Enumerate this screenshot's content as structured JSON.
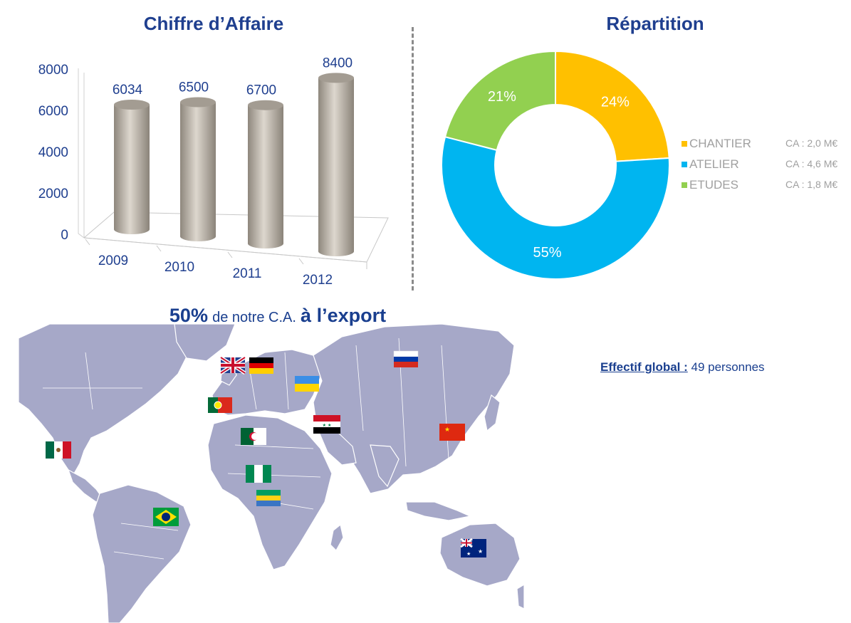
{
  "chart_data": [
    {
      "type": "bar",
      "title": "Chiffre d’Affaire",
      "categories": [
        "2009",
        "2010",
        "2011",
        "2012"
      ],
      "values": [
        6034,
        6500,
        6700,
        8400
      ],
      "yticks": [
        "0",
        "2000",
        "4000",
        "6000",
        "8000"
      ],
      "ylim": [
        0,
        8000
      ],
      "grid": false,
      "style": "3d-cylinder",
      "colors": {
        "bar": "#b5aea4",
        "axis_text": "#1f3f8f"
      }
    },
    {
      "type": "pie",
      "title": "Répartition",
      "style": "donut",
      "labels": [
        "CHANTIER",
        "ATELIER",
        "ETUDES"
      ],
      "values": [
        24,
        55,
        21
      ],
      "value_labels": [
        "24%",
        "55%",
        "21%"
      ],
      "annotations": [
        "CA : 2,0 M€",
        "CA : 4,6 M€",
        "CA : 1,8 M€"
      ],
      "legend_position": "right",
      "colors": [
        "#ffc000",
        "#00b5f0",
        "#92d050"
      ]
    }
  ],
  "export": {
    "pct": "50%",
    "middle": "de notre C.A.",
    "end": "à l’export"
  },
  "staff": {
    "label": "Effectif global :",
    "value": "49 personnes"
  },
  "map": {
    "land_color": "#a6a8c8",
    "flags": [
      "uk-flag",
      "germany-flag",
      "russia-flag",
      "ukraine-flag",
      "portugal-flag",
      "iraq-flag",
      "algeria-flag",
      "china-flag",
      "mexico-flag",
      "nigeria-flag",
      "gabon-flag",
      "brazil-flag",
      "australia-flag"
    ]
  }
}
